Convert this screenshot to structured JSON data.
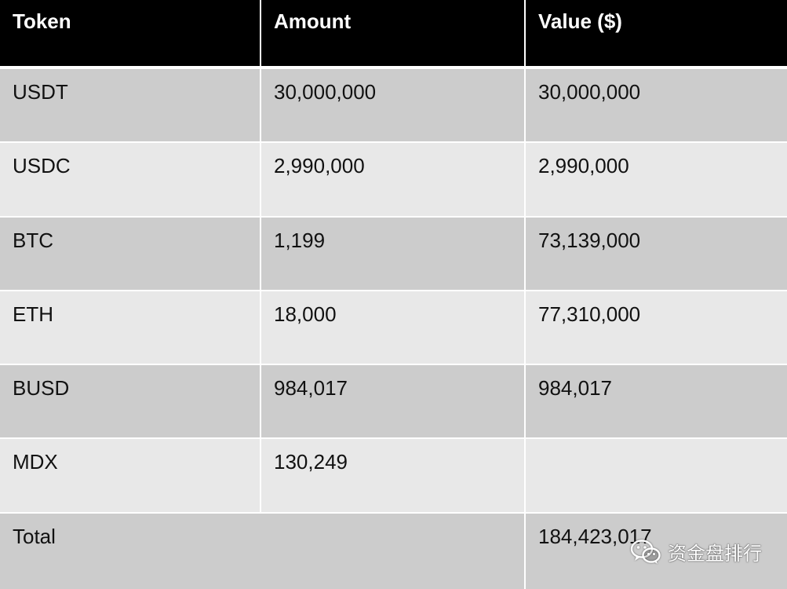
{
  "table": {
    "headers": [
      "Token",
      "Amount",
      "Value ($)"
    ],
    "rows": [
      [
        "USDT",
        "30,000,000",
        "30,000,000"
      ],
      [
        "USDC",
        "2,990,000",
        "2,990,000"
      ],
      [
        "BTC",
        "1,199",
        "73,139,000"
      ],
      [
        "ETH",
        "18,000",
        "77,310,000"
      ],
      [
        "BUSD",
        "984,017",
        "984,017"
      ],
      [
        "MDX",
        "130,249",
        ""
      ]
    ],
    "total": {
      "label": "Total",
      "value": "184,423,017"
    }
  },
  "watermark": {
    "text": "资金盘排行",
    "icon": "wechat-icon"
  }
}
